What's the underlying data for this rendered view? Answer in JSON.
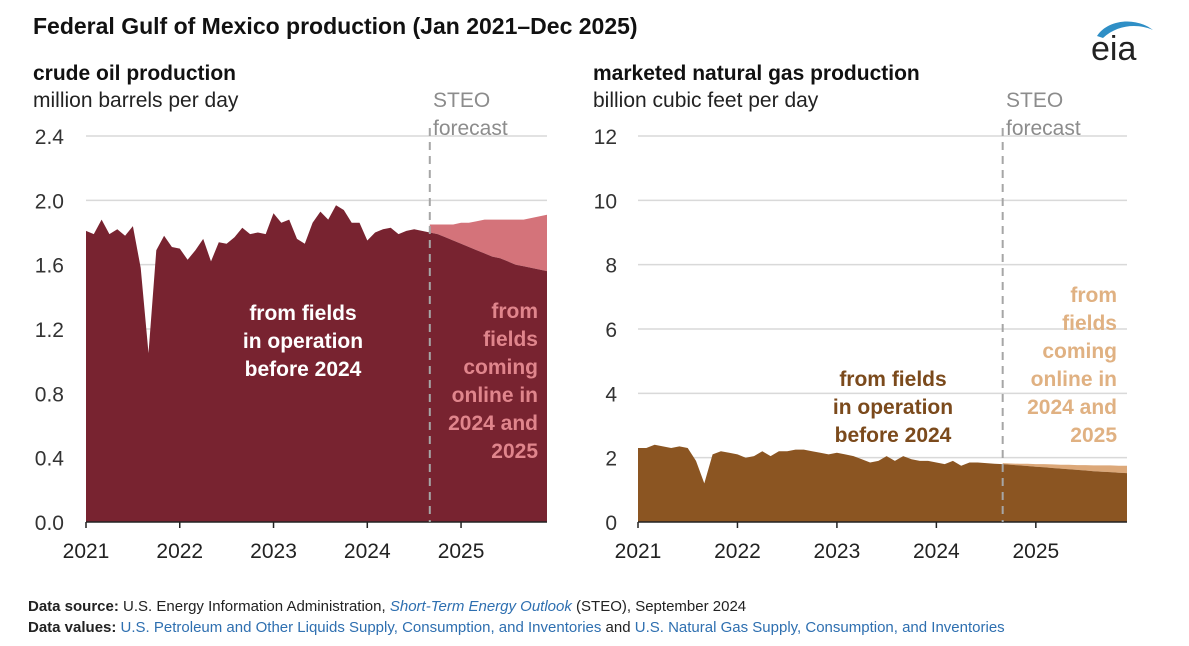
{
  "title": "Federal Gulf of Mexico production (Jan 2021–Dec 2025)",
  "logo": {
    "text": "eia",
    "icon": "eia-logo"
  },
  "colors": {
    "oil_existing": "#782330",
    "oil_new": "#d4737a",
    "gas_existing": "#8b5522",
    "gas_new": "#dca879",
    "forecast_line": "#a6a6a6",
    "grid": "#d9d9d9"
  },
  "forecast_label": "STEO forecast",
  "chart_data": [
    {
      "type": "area",
      "title": "crude oil production",
      "ylabel": "million barrels per day",
      "ylim": [
        0,
        2.4
      ],
      "yticks": [
        "0.0",
        "0.4",
        "0.8",
        "1.2",
        "1.6",
        "2.0",
        "2.4"
      ],
      "xticks": [
        "2021",
        "2022",
        "2023",
        "2024",
        "2025"
      ],
      "x_start": "2021-01",
      "forecast_start": "2024-09",
      "series": [
        {
          "name": "from fields in operation before 2024",
          "values": [
            1.81,
            1.79,
            1.88,
            1.79,
            1.82,
            1.78,
            1.84,
            1.58,
            1.05,
            1.69,
            1.78,
            1.71,
            1.7,
            1.63,
            1.69,
            1.76,
            1.62,
            1.74,
            1.73,
            1.77,
            1.83,
            1.79,
            1.8,
            1.79,
            1.92,
            1.86,
            1.88,
            1.76,
            1.73,
            1.86,
            1.93,
            1.88,
            1.97,
            1.94,
            1.86,
            1.86,
            1.75,
            1.8,
            1.82,
            1.83,
            1.79,
            1.81,
            1.82,
            1.81,
            1.8,
            1.79,
            1.77,
            1.75,
            1.73,
            1.71,
            1.69,
            1.67,
            1.65,
            1.64,
            1.62,
            1.6,
            1.59,
            1.58,
            1.57,
            1.56
          ]
        },
        {
          "name": "from fields coming online in 2024 and 2025",
          "values": [
            0,
            0,
            0,
            0,
            0,
            0,
            0,
            0,
            0,
            0,
            0,
            0,
            0,
            0,
            0,
            0,
            0,
            0,
            0,
            0,
            0,
            0,
            0,
            0,
            0,
            0,
            0,
            0,
            0,
            0,
            0,
            0,
            0,
            0,
            0,
            0,
            0,
            0,
            0,
            0,
            0,
            0,
            0.03,
            0.05,
            0.05,
            0.06,
            0.08,
            0.1,
            0.13,
            0.15,
            0.18,
            0.21,
            0.23,
            0.24,
            0.26,
            0.28,
            0.29,
            0.31,
            0.33,
            0.35
          ]
        }
      ],
      "labels": {
        "existing": [
          "from fields",
          "in operation",
          "before 2024"
        ],
        "new": [
          "from",
          "fields",
          "coming",
          "online in",
          "2024 and",
          "2025"
        ]
      }
    },
    {
      "type": "area",
      "title": "marketed natural gas production",
      "ylabel": "billion cubic feet per day",
      "ylim": [
        0,
        12
      ],
      "yticks": [
        "0",
        "2",
        "4",
        "6",
        "8",
        "10",
        "12"
      ],
      "xticks": [
        "2021",
        "2022",
        "2023",
        "2024",
        "2025"
      ],
      "x_start": "2021-01",
      "forecast_start": "2024-09",
      "series": [
        {
          "name": "from fields in operation before 2024",
          "values": [
            2.3,
            2.3,
            2.4,
            2.35,
            2.3,
            2.35,
            2.3,
            1.9,
            1.2,
            2.1,
            2.2,
            2.15,
            2.1,
            2.0,
            2.05,
            2.2,
            2.05,
            2.2,
            2.2,
            2.25,
            2.25,
            2.2,
            2.15,
            2.1,
            2.15,
            2.1,
            2.05,
            1.95,
            1.85,
            1.9,
            2.05,
            1.9,
            2.05,
            1.95,
            1.9,
            1.9,
            1.85,
            1.8,
            1.9,
            1.75,
            1.85,
            1.85,
            1.83,
            1.81,
            1.8,
            1.78,
            1.76,
            1.74,
            1.72,
            1.7,
            1.68,
            1.66,
            1.64,
            1.62,
            1.6,
            1.58,
            1.56,
            1.55,
            1.53,
            1.52
          ]
        },
        {
          "name": "from fields coming online in 2024 and 2025",
          "values": [
            0,
            0,
            0,
            0,
            0,
            0,
            0,
            0,
            0,
            0,
            0,
            0,
            0,
            0,
            0,
            0,
            0,
            0,
            0,
            0,
            0,
            0,
            0,
            0,
            0,
            0,
            0,
            0,
            0,
            0,
            0,
            0,
            0,
            0,
            0,
            0,
            0,
            0,
            0,
            0,
            0,
            0,
            0.01,
            0.02,
            0.03,
            0.04,
            0.05,
            0.07,
            0.08,
            0.1,
            0.11,
            0.12,
            0.14,
            0.15,
            0.17,
            0.18,
            0.2,
            0.21,
            0.22,
            0.23
          ]
        }
      ],
      "labels": {
        "existing": [
          "from fields",
          "in operation",
          "before 2024"
        ],
        "new": [
          "from",
          "fields",
          "coming",
          "online in",
          "2024 and",
          "2025"
        ]
      }
    }
  ],
  "footer": {
    "source_label": "Data source:",
    "source_text_1": "U.S. Energy Information Administration,",
    "source_link": "Short-Term Energy Outlook",
    "source_text_2": "(STEO), September 2024",
    "values_label": "Data values:",
    "values_link_1": "U.S. Petroleum and Other Liquids Supply, Consumption, and Inventories",
    "values_and": "and",
    "values_link_2": "U.S. Natural Gas Supply, Consumption, and Inventories"
  }
}
